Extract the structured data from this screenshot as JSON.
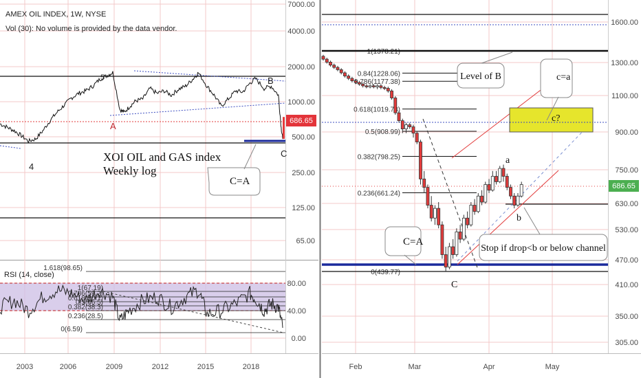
{
  "header": {
    "symbol_line": "AMEX OIL INDEX, 1W, NYSE",
    "vol_line": "Vol (30): No volume is provided by the data vendor.",
    "rsi_label": "RSI (14, close)"
  },
  "price_badge": "686.65",
  "colors": {
    "bullish": "#ffffff",
    "bearish": "#e23b3b",
    "grid": "#f3c9c9",
    "blue_line": "#1a2a9c",
    "rsi_band": "#cfc2e6",
    "note_box": "#e6e52c",
    "badge": "#e3343a",
    "badge_right": "#4caf50"
  },
  "chart_data": [
    {
      "type": "line",
      "name": "weekly-log",
      "title": "XOI OIL and GAS index Weekly log",
      "x_ticks": [
        "2003",
        "2006",
        "2009",
        "2012",
        "2015",
        "2018"
      ],
      "y_ticks": [
        "7000.00",
        "4000.00",
        "2000.00",
        "1000.00",
        "500.00",
        "250.00",
        "125.00",
        "65.00"
      ],
      "y_scale": "log",
      "ylim": [
        40,
        7000
      ],
      "x": [
        2000.5,
        2001.0,
        2001.5,
        2002.0,
        2002.5,
        2003.0,
        2003.5,
        2004.0,
        2004.5,
        2005.0,
        2005.5,
        2006.0,
        2006.5,
        2007.0,
        2007.5,
        2008.0,
        2008.4,
        2008.9,
        2009.2,
        2009.6,
        2010.0,
        2010.5,
        2011.0,
        2011.5,
        2012.0,
        2012.5,
        2013.0,
        2013.5,
        2014.0,
        2014.4,
        2015.0,
        2015.5,
        2016.0,
        2016.5,
        2017.0,
        2017.5,
        2018.0,
        2018.4,
        2019.0,
        2019.5,
        2020.0,
        2020.2,
        2020.3
      ],
      "y": [
        600,
        560,
        520,
        470,
        420,
        440,
        520,
        640,
        760,
        880,
        1020,
        1120,
        1180,
        1300,
        1500,
        1620,
        1720,
        800,
        760,
        860,
        960,
        1000,
        1240,
        1120,
        1180,
        1080,
        1220,
        1300,
        1500,
        1710,
        1300,
        1080,
        860,
        1000,
        1180,
        1150,
        1380,
        1520,
        1240,
        1300,
        1080,
        550,
        440
      ],
      "annotations": [
        "5",
        "A",
        "4",
        "B",
        "C",
        "C=A"
      ],
      "levels": [
        "686.65"
      ]
    },
    {
      "type": "line",
      "name": "rsi-14",
      "title": "RSI (14, close)",
      "y_ticks": [
        "80.00",
        "40.00",
        "0.00"
      ],
      "ylim": [
        -5,
        90
      ],
      "fib_labels": [
        "1.618(98.65)",
        "1(67.19)",
        "0.786(59.2)",
        "0.618(50.1)",
        "0.5(46.5)",
        "0.382(38.3)",
        "0.236(28.5)",
        "0(6.59)"
      ],
      "x": [
        2000.5,
        2001.5,
        2002.5,
        2003.5,
        2004.5,
        2005.5,
        2006.5,
        2007.5,
        2008.4,
        2008.9,
        2009.5,
        2010.5,
        2011.5,
        2012.5,
        2013.5,
        2014.4,
        2015.0,
        2016.0,
        2017.0,
        2018.0,
        2018.5,
        2019.0,
        2019.5,
        2020.0,
        2020.3
      ],
      "y": [
        45,
        55,
        40,
        60,
        70,
        65,
        55,
        70,
        60,
        25,
        40,
        55,
        60,
        45,
        60,
        70,
        35,
        40,
        50,
        65,
        55,
        40,
        50,
        45,
        15
      ]
    },
    {
      "type": "candlestick",
      "name": "daily-zoom",
      "x_ticks": [
        "Feb",
        "Mar",
        "Apr",
        "May"
      ],
      "y_ticks": [
        "1600.00",
        "1300.00",
        "1100.00",
        "900.00",
        "750.00",
        "630.00",
        "530.00",
        "470.00",
        "410.00",
        "350.00",
        "305.00"
      ],
      "y_scale": "log",
      "ylim": [
        290,
        1750
      ],
      "fib_levels": [
        {
          "label": "1(1378.21)",
          "value": 1378.21
        },
        {
          "label": "0.84(1228.06)",
          "value": 1228.06
        },
        {
          "label": "0.786(1177.38)",
          "value": 1177.38
        },
        {
          "label": "0.618(1019.73)",
          "value": 1019.73
        },
        {
          "label": "0.5(908.99)",
          "value": 908.99
        },
        {
          "label": "0.382(798.25)",
          "value": 798.25
        },
        {
          "label": "0.236(661.24)",
          "value": 661.24
        },
        {
          "label": "0(439.77)",
          "value": 439.77
        }
      ],
      "candles": [
        {
          "d": 0,
          "o": 1340,
          "c": 1320,
          "h": 1350,
          "l": 1310
        },
        {
          "d": 2,
          "o": 1320,
          "c": 1300,
          "h": 1330,
          "l": 1290
        },
        {
          "d": 4,
          "o": 1300,
          "c": 1280,
          "h": 1310,
          "l": 1270
        },
        {
          "d": 6,
          "o": 1280,
          "c": 1265,
          "h": 1290,
          "l": 1255
        },
        {
          "d": 8,
          "o": 1265,
          "c": 1250,
          "h": 1275,
          "l": 1240
        },
        {
          "d": 10,
          "o": 1250,
          "c": 1230,
          "h": 1260,
          "l": 1220
        },
        {
          "d": 12,
          "o": 1230,
          "c": 1210,
          "h": 1240,
          "l": 1200
        },
        {
          "d": 14,
          "o": 1210,
          "c": 1195,
          "h": 1220,
          "l": 1185
        },
        {
          "d": 16,
          "o": 1195,
          "c": 1180,
          "h": 1205,
          "l": 1170
        },
        {
          "d": 18,
          "o": 1180,
          "c": 1170,
          "h": 1190,
          "l": 1160
        },
        {
          "d": 20,
          "o": 1170,
          "c": 1160,
          "h": 1180,
          "l": 1150
        },
        {
          "d": 22,
          "o": 1160,
          "c": 1150,
          "h": 1170,
          "l": 1140
        },
        {
          "d": 24,
          "o": 1150,
          "c": 1145,
          "h": 1160,
          "l": 1135
        },
        {
          "d": 26,
          "o": 1145,
          "c": 1150,
          "h": 1160,
          "l": 1135
        },
        {
          "d": 28,
          "o": 1150,
          "c": 1145,
          "h": 1160,
          "l": 1135
        },
        {
          "d": 30,
          "o": 1145,
          "c": 1150,
          "h": 1160,
          "l": 1130
        },
        {
          "d": 32,
          "o": 1150,
          "c": 1140,
          "h": 1160,
          "l": 1130
        },
        {
          "d": 34,
          "o": 1140,
          "c": 1135,
          "h": 1150,
          "l": 1125
        },
        {
          "d": 36,
          "o": 1135,
          "c": 1120,
          "h": 1145,
          "l": 1110
        },
        {
          "d": 38,
          "o": 1120,
          "c": 1080,
          "h": 1130,
          "l": 1070
        },
        {
          "d": 40,
          "o": 1080,
          "c": 1000,
          "h": 1090,
          "l": 990
        },
        {
          "d": 42,
          "o": 1000,
          "c": 960,
          "h": 1010,
          "l": 950
        },
        {
          "d": 44,
          "o": 960,
          "c": 920,
          "h": 970,
          "l": 900
        },
        {
          "d": 46,
          "o": 920,
          "c": 940,
          "h": 950,
          "l": 900
        },
        {
          "d": 48,
          "o": 940,
          "c": 930,
          "h": 950,
          "l": 920
        },
        {
          "d": 50,
          "o": 930,
          "c": 900,
          "h": 940,
          "l": 880
        },
        {
          "d": 52,
          "o": 900,
          "c": 860,
          "h": 910,
          "l": 850
        },
        {
          "d": 54,
          "o": 860,
          "c": 710,
          "h": 870,
          "l": 690
        },
        {
          "d": 56,
          "o": 710,
          "c": 680,
          "h": 740,
          "l": 660
        },
        {
          "d": 58,
          "o": 680,
          "c": 620,
          "h": 690,
          "l": 610
        },
        {
          "d": 60,
          "o": 620,
          "c": 580,
          "h": 650,
          "l": 570
        },
        {
          "d": 62,
          "o": 580,
          "c": 610,
          "h": 620,
          "l": 560
        },
        {
          "d": 64,
          "o": 610,
          "c": 560,
          "h": 630,
          "l": 550
        },
        {
          "d": 66,
          "o": 560,
          "c": 480,
          "h": 570,
          "l": 470
        },
        {
          "d": 68,
          "o": 480,
          "c": 450,
          "h": 500,
          "l": 440
        },
        {
          "d": 70,
          "o": 450,
          "c": 500,
          "h": 510,
          "l": 445
        },
        {
          "d": 72,
          "o": 500,
          "c": 480,
          "h": 520,
          "l": 470
        },
        {
          "d": 74,
          "o": 480,
          "c": 540,
          "h": 550,
          "l": 475
        },
        {
          "d": 76,
          "o": 540,
          "c": 520,
          "h": 560,
          "l": 510
        },
        {
          "d": 78,
          "o": 520,
          "c": 580,
          "h": 590,
          "l": 515
        },
        {
          "d": 80,
          "o": 580,
          "c": 560,
          "h": 600,
          "l": 550
        },
        {
          "d": 82,
          "o": 560,
          "c": 620,
          "h": 630,
          "l": 555
        },
        {
          "d": 84,
          "o": 620,
          "c": 600,
          "h": 640,
          "l": 590
        },
        {
          "d": 86,
          "o": 600,
          "c": 650,
          "h": 660,
          "l": 595
        },
        {
          "d": 88,
          "o": 650,
          "c": 630,
          "h": 670,
          "l": 620
        },
        {
          "d": 90,
          "o": 630,
          "c": 690,
          "h": 700,
          "l": 625
        },
        {
          "d": 92,
          "o": 690,
          "c": 670,
          "h": 710,
          "l": 660
        },
        {
          "d": 94,
          "o": 670,
          "c": 720,
          "h": 740,
          "l": 665
        },
        {
          "d": 96,
          "o": 720,
          "c": 700,
          "h": 740,
          "l": 690
        },
        {
          "d": 98,
          "o": 700,
          "c": 750,
          "h": 760,
          "l": 695
        },
        {
          "d": 100,
          "o": 750,
          "c": 720,
          "h": 765,
          "l": 700
        },
        {
          "d": 102,
          "o": 720,
          "c": 680,
          "h": 730,
          "l": 670
        },
        {
          "d": 104,
          "o": 680,
          "c": 650,
          "h": 690,
          "l": 640
        },
        {
          "d": 106,
          "o": 650,
          "c": 620,
          "h": 660,
          "l": 610
        },
        {
          "d": 108,
          "o": 620,
          "c": 650,
          "h": 660,
          "l": 615
        },
        {
          "d": 110,
          "o": 650,
          "c": 690,
          "h": 700,
          "l": 645
        }
      ],
      "annotations": [
        "a",
        "b",
        "C",
        "c=a",
        "c?",
        "C=A",
        "Level of B",
        "Stop if drop<b or below channel"
      ]
    }
  ]
}
